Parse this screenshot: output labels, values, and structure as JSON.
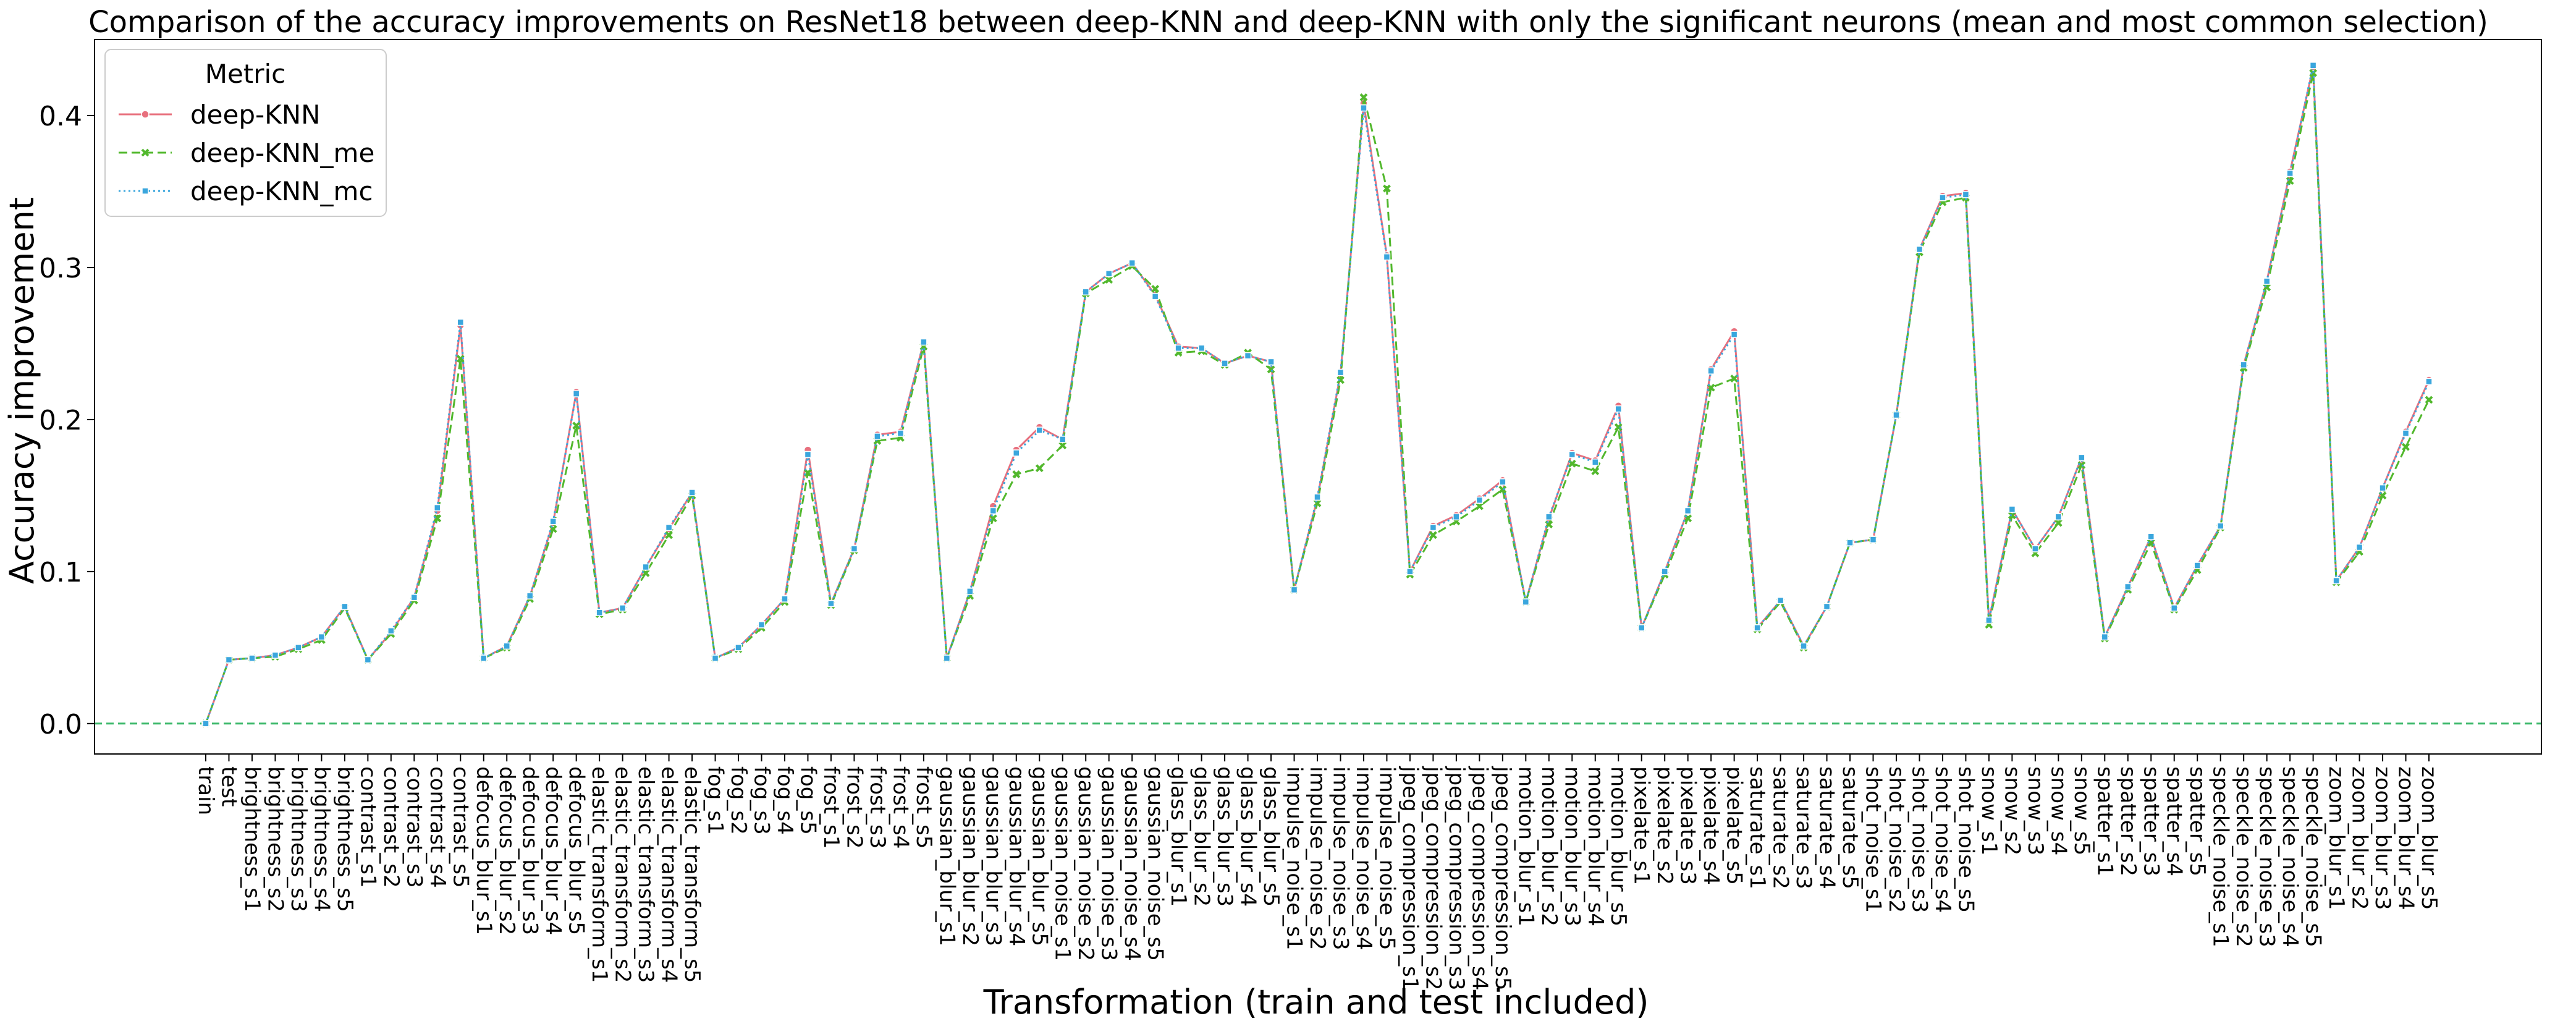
{
  "chart_data": {
    "type": "line",
    "title": "Comparison of the accuracy improvements on ResNet18 between deep-KNN and deep-KNN with only the significant neurons (mean and most common selection)",
    "xlabel": "Transformation (train and test included)",
    "ylabel": "Accuracy improvement",
    "ylim": [
      -0.02,
      0.45
    ],
    "yticks": [
      0.0,
      0.1,
      0.2,
      0.3,
      0.4
    ],
    "ytick_labels": [
      "0.0",
      "0.1",
      "0.2",
      "0.3",
      "0.4"
    ],
    "grid": false,
    "reference_line": {
      "y": 0.0,
      "color": "#3bb86a",
      "style": "dashed"
    },
    "legend": {
      "title": "Metric",
      "position": "top-left"
    },
    "categories": [
      "train",
      "test",
      "brightness_s1",
      "brightness_s2",
      "brightness_s3",
      "brightness_s4",
      "brightness_s5",
      "contrast_s1",
      "contrast_s2",
      "contrast_s3",
      "contrast_s4",
      "contrast_s5",
      "defocus_blur_s1",
      "defocus_blur_s2",
      "defocus_blur_s3",
      "defocus_blur_s4",
      "defocus_blur_s5",
      "elastic_transform_s1",
      "elastic_transform_s2",
      "elastic_transform_s3",
      "elastic_transform_s4",
      "elastic_transform_s5",
      "fog_s1",
      "fog_s2",
      "fog_s3",
      "fog_s4",
      "fog_s5",
      "frost_s1",
      "frost_s2",
      "frost_s3",
      "frost_s4",
      "frost_s5",
      "gaussian_blur_s1",
      "gaussian_blur_s2",
      "gaussian_blur_s3",
      "gaussian_blur_s4",
      "gaussian_blur_s5",
      "gaussian_noise_s1",
      "gaussian_noise_s2",
      "gaussian_noise_s3",
      "gaussian_noise_s4",
      "gaussian_noise_s5",
      "glass_blur_s1",
      "glass_blur_s2",
      "glass_blur_s3",
      "glass_blur_s4",
      "glass_blur_s5",
      "impulse_noise_s1",
      "impulse_noise_s2",
      "impulse_noise_s3",
      "impulse_noise_s4",
      "impulse_noise_s5",
      "jpeg_compression_s1",
      "jpeg_compression_s2",
      "jpeg_compression_s3",
      "jpeg_compression_s4",
      "jpeg_compression_s5",
      "motion_blur_s1",
      "motion_blur_s2",
      "motion_blur_s3",
      "motion_blur_s4",
      "motion_blur_s5",
      "pixelate_s1",
      "pixelate_s2",
      "pixelate_s3",
      "pixelate_s4",
      "pixelate_s5",
      "saturate_s1",
      "saturate_s2",
      "saturate_s3",
      "saturate_s4",
      "saturate_s5",
      "shot_noise_s1",
      "shot_noise_s2",
      "shot_noise_s3",
      "shot_noise_s4",
      "shot_noise_s5",
      "snow_s1",
      "snow_s2",
      "snow_s3",
      "snow_s4",
      "snow_s5",
      "spatter_s1",
      "spatter_s2",
      "spatter_s3",
      "spatter_s4",
      "spatter_s5",
      "speckle_noise_s1",
      "speckle_noise_s2",
      "speckle_noise_s3",
      "speckle_noise_s4",
      "speckle_noise_s5",
      "zoom_blur_s1",
      "zoom_blur_s2",
      "zoom_blur_s3",
      "zoom_blur_s4",
      "zoom_blur_s5"
    ],
    "series": [
      {
        "name": "deep-KNN",
        "color": "#e8707e",
        "line_style": "solid",
        "marker": "circle",
        "values": [
          0.0,
          0.042,
          0.043,
          0.045,
          0.05,
          0.057,
          0.077,
          0.042,
          0.06,
          0.083,
          0.14,
          0.262,
          0.043,
          0.051,
          0.084,
          0.132,
          0.218,
          0.073,
          0.076,
          0.103,
          0.128,
          0.152,
          0.043,
          0.05,
          0.065,
          0.082,
          0.18,
          0.079,
          0.115,
          0.19,
          0.192,
          0.251,
          0.043,
          0.087,
          0.143,
          0.18,
          0.195,
          0.187,
          0.284,
          0.296,
          0.303,
          0.282,
          0.248,
          0.247,
          0.237,
          0.242,
          0.238,
          0.088,
          0.148,
          0.23,
          0.408,
          0.308,
          0.1,
          0.13,
          0.137,
          0.148,
          0.16,
          0.08,
          0.135,
          0.178,
          0.173,
          0.209,
          0.063,
          0.1,
          0.14,
          0.233,
          0.258,
          0.063,
          0.081,
          0.051,
          0.077,
          0.119,
          0.121,
          0.203,
          0.312,
          0.347,
          0.349,
          0.068,
          0.141,
          0.115,
          0.136,
          0.175,
          0.057,
          0.09,
          0.123,
          0.076,
          0.104,
          0.13,
          0.236,
          0.291,
          0.363,
          0.432,
          0.094,
          0.116,
          0.155,
          0.192,
          0.226
        ]
      },
      {
        "name": "deep-KNN_me",
        "color": "#52b82d",
        "line_style": "dashed",
        "marker": "x",
        "values": [
          0.0,
          0.042,
          0.043,
          0.044,
          0.049,
          0.055,
          0.076,
          0.042,
          0.059,
          0.081,
          0.135,
          0.24,
          0.043,
          0.05,
          0.082,
          0.128,
          0.196,
          0.072,
          0.075,
          0.099,
          0.124,
          0.15,
          0.043,
          0.049,
          0.063,
          0.08,
          0.165,
          0.078,
          0.114,
          0.186,
          0.188,
          0.248,
          0.043,
          0.084,
          0.135,
          0.164,
          0.168,
          0.183,
          0.283,
          0.292,
          0.301,
          0.286,
          0.244,
          0.245,
          0.236,
          0.244,
          0.233,
          0.088,
          0.145,
          0.226,
          0.412,
          0.352,
          0.098,
          0.124,
          0.133,
          0.143,
          0.154,
          0.08,
          0.131,
          0.171,
          0.166,
          0.195,
          0.063,
          0.098,
          0.135,
          0.221,
          0.227,
          0.062,
          0.08,
          0.05,
          0.077,
          0.119,
          0.121,
          0.203,
          0.31,
          0.343,
          0.346,
          0.065,
          0.137,
          0.112,
          0.132,
          0.17,
          0.056,
          0.088,
          0.119,
          0.075,
          0.101,
          0.129,
          0.234,
          0.287,
          0.357,
          0.428,
          0.093,
          0.113,
          0.15,
          0.182,
          0.213
        ]
      },
      {
        "name": "deep-KNN_mc",
        "color": "#3aa6dd",
        "line_style": "dotted",
        "marker": "square",
        "values": [
          0.0,
          0.042,
          0.043,
          0.045,
          0.05,
          0.057,
          0.077,
          0.042,
          0.061,
          0.083,
          0.142,
          0.264,
          0.043,
          0.051,
          0.084,
          0.133,
          0.217,
          0.073,
          0.076,
          0.103,
          0.129,
          0.152,
          0.043,
          0.05,
          0.065,
          0.082,
          0.177,
          0.079,
          0.115,
          0.189,
          0.191,
          0.251,
          0.043,
          0.087,
          0.14,
          0.178,
          0.193,
          0.187,
          0.284,
          0.296,
          0.303,
          0.281,
          0.247,
          0.247,
          0.237,
          0.242,
          0.238,
          0.088,
          0.149,
          0.231,
          0.405,
          0.307,
          0.1,
          0.129,
          0.136,
          0.147,
          0.159,
          0.08,
          0.136,
          0.177,
          0.172,
          0.207,
          0.063,
          0.1,
          0.14,
          0.232,
          0.256,
          0.063,
          0.081,
          0.051,
          0.077,
          0.119,
          0.121,
          0.203,
          0.312,
          0.346,
          0.348,
          0.068,
          0.141,
          0.115,
          0.136,
          0.175,
          0.057,
          0.09,
          0.123,
          0.076,
          0.104,
          0.13,
          0.236,
          0.291,
          0.362,
          0.433,
          0.094,
          0.116,
          0.155,
          0.191,
          0.225
        ]
      }
    ]
  }
}
